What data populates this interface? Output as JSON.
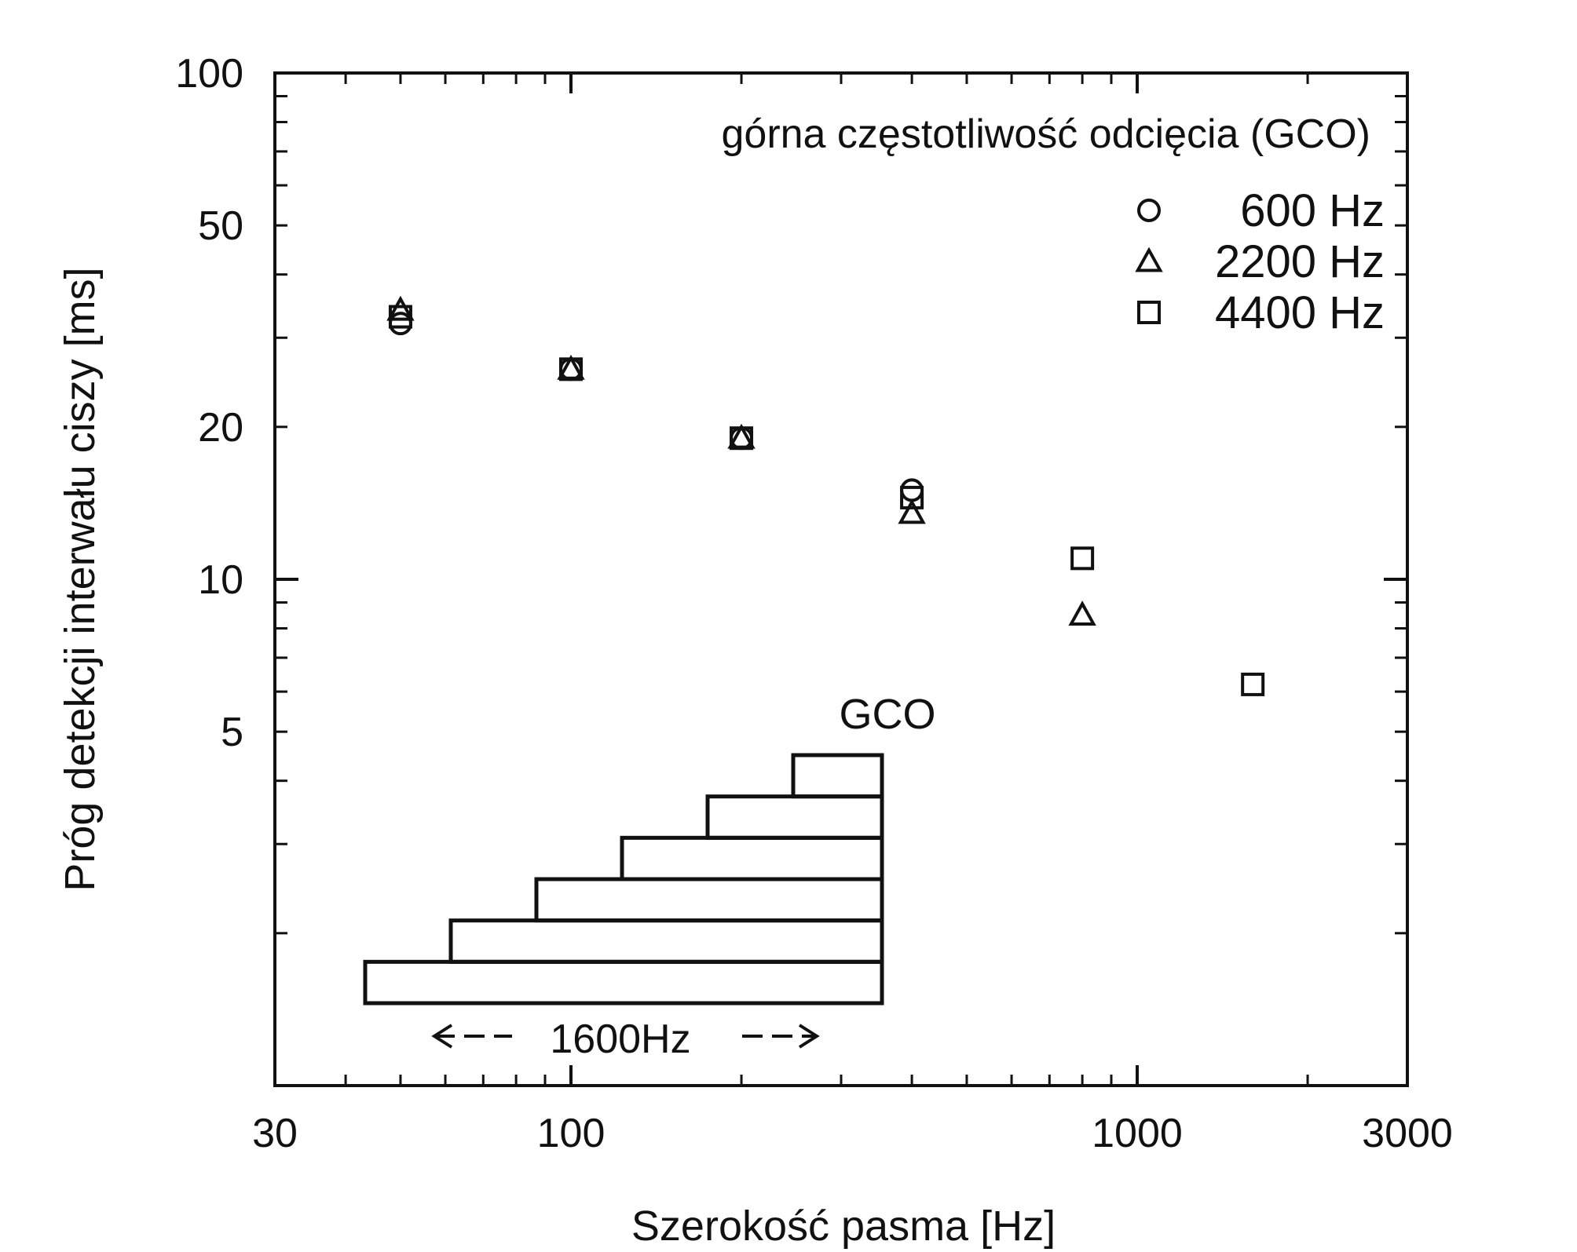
{
  "chart_data": {
    "type": "scatter",
    "title": "",
    "xlabel": "Szerokość pasma [Hz]",
    "ylabel": "Próg detekcji interwału ciszy [ms]",
    "xscale": "log",
    "yscale": "log",
    "xlim": [
      30,
      3000
    ],
    "ylim": [
      1,
      100
    ],
    "x_ticks": [
      {
        "value": 30,
        "label": "30"
      },
      {
        "value": 100,
        "label": "100"
      },
      {
        "value": 1000,
        "label": "1000"
      },
      {
        "value": 3000,
        "label": "3000"
      }
    ],
    "y_ticks": [
      {
        "value": 5,
        "label": "5"
      },
      {
        "value": 10,
        "label": "10"
      },
      {
        "value": 20,
        "label": "20"
      },
      {
        "value": 50,
        "label": "50"
      },
      {
        "value": 100,
        "label": "100"
      }
    ],
    "legend_title": "górna częstotliwość odcięcia (GCO)",
    "legend_position": "top-right",
    "series": [
      {
        "name": "600 Hz",
        "marker": "circle",
        "points": [
          [
            50,
            32
          ],
          [
            100,
            26
          ],
          [
            200,
            19
          ],
          [
            400,
            15
          ]
        ]
      },
      {
        "name": "2200 Hz",
        "marker": "triangle",
        "points": [
          [
            50,
            34
          ],
          [
            100,
            26
          ],
          [
            200,
            19
          ],
          [
            400,
            13.5
          ],
          [
            800,
            8.5
          ]
        ]
      },
      {
        "name": "4400 Hz",
        "marker": "square",
        "points": [
          [
            50,
            33
          ],
          [
            100,
            26
          ],
          [
            200,
            19
          ],
          [
            400,
            14.5
          ],
          [
            800,
            11
          ],
          [
            1600,
            6.2
          ]
        ]
      }
    ],
    "inset": {
      "label": "GCO",
      "span_label": "1600Hz",
      "bands": 6
    },
    "grid": false,
    "color": "#111111"
  }
}
